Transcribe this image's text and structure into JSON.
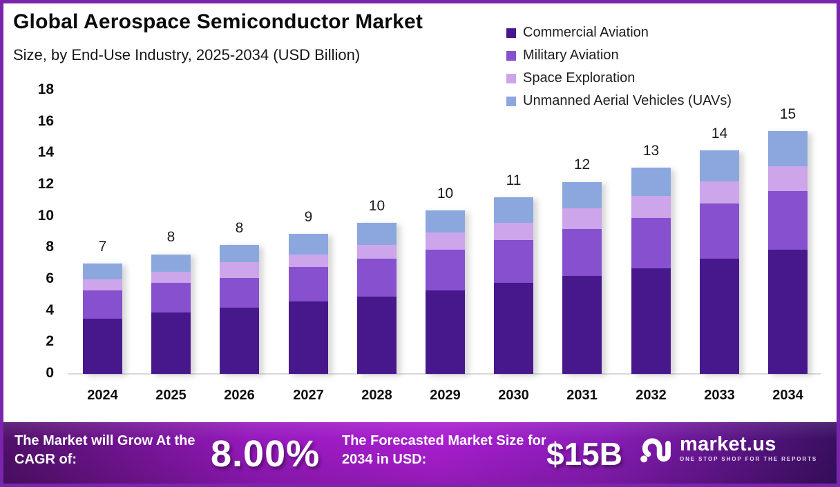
{
  "header": {
    "title": "Global Aerospace Semiconductor Market",
    "subtitle": "Size, by End-Use Industry, 2025-2034 (USD Billion)"
  },
  "chart_data": {
    "type": "bar",
    "stacked": true,
    "title": "Global Aerospace Semiconductor Market Size, by End-Use Industry, 2025-2034 (USD Billion)",
    "categories": [
      "2024",
      "2025",
      "2026",
      "2027",
      "2028",
      "2029",
      "2030",
      "2031",
      "2032",
      "2033",
      "2034"
    ],
    "series": [
      {
        "name": "Commercial Aviation",
        "color": "#47188c",
        "values": [
          3.5,
          3.9,
          4.2,
          4.6,
          4.9,
          5.3,
          5.8,
          6.2,
          6.7,
          7.3,
          7.9
        ]
      },
      {
        "name": "Military Aviation",
        "color": "#8650ce",
        "values": [
          1.8,
          1.9,
          1.9,
          2.2,
          2.4,
          2.6,
          2.7,
          3.0,
          3.2,
          3.5,
          3.7
        ]
      },
      {
        "name": "Space Exploration",
        "color": "#cca5eb",
        "values": [
          0.7,
          0.7,
          1.0,
          0.8,
          0.9,
          1.1,
          1.1,
          1.3,
          1.4,
          1.4,
          1.6
        ]
      },
      {
        "name": "Unmanned Aerial Vehicles (UAVs)",
        "color": "#8ca7de",
        "values": [
          1.0,
          1.1,
          1.1,
          1.3,
          1.4,
          1.4,
          1.6,
          1.7,
          1.8,
          2.0,
          2.2
        ]
      }
    ],
    "bar_total_labels": [
      "7",
      "8",
      "8",
      "9",
      "10",
      "10",
      "11",
      "12",
      "13",
      "14",
      "15"
    ],
    "ylim": [
      0,
      18
    ],
    "yticks": [
      "0",
      "2",
      "4",
      "6",
      "8",
      "10",
      "12",
      "14",
      "16",
      "18"
    ],
    "xlabel": "",
    "ylabel": "",
    "grid": false,
    "legend_position": "top-right"
  },
  "banner": {
    "cagr_label": "The Market will Grow At the CAGR of:",
    "cagr_value": "8.00%",
    "forecast_label": "The Forecasted Market Size for 2034 in USD:",
    "forecast_value": "$15B",
    "brand_name": "market.us",
    "brand_tagline": "ONE STOP SHOP FOR THE REPORTS"
  }
}
